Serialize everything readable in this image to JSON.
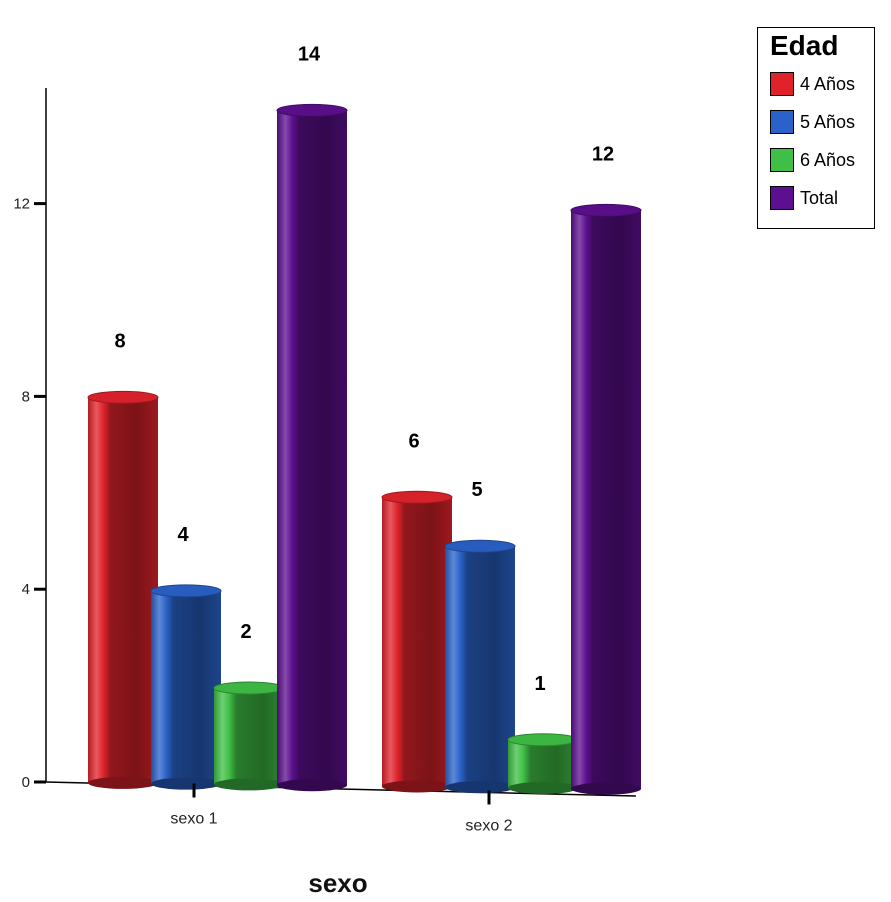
{
  "chart_data": {
    "type": "bar",
    "title": "",
    "xlabel": "sexo",
    "ylabel": "",
    "categories": [
      "sexo 1",
      "sexo 2"
    ],
    "series": [
      {
        "name": "4 Años",
        "values": [
          8,
          6
        ],
        "color": "#e0232b"
      },
      {
        "name": "5 Años",
        "values": [
          4,
          5
        ],
        "color": "#2a62c9"
      },
      {
        "name": "6 Años",
        "values": [
          2,
          1
        ],
        "color": "#3fbf45"
      },
      {
        "name": "Total",
        "values": [
          14,
          12
        ],
        "color": "#5c0f8e"
      }
    ],
    "data_labels": [
      [
        "8",
        "6"
      ],
      [
        "4",
        "5"
      ],
      [
        "2",
        "1"
      ],
      [
        "14",
        "12"
      ]
    ],
    "ylim": [
      0,
      14.5
    ],
    "yticks": [
      0,
      4,
      8,
      12
    ],
    "ytick_labels": [
      "0",
      "4",
      "8",
      "12"
    ],
    "grid": false,
    "legend": {
      "title": "Edad",
      "position": "top-right"
    },
    "style": "3d-cylinder"
  }
}
